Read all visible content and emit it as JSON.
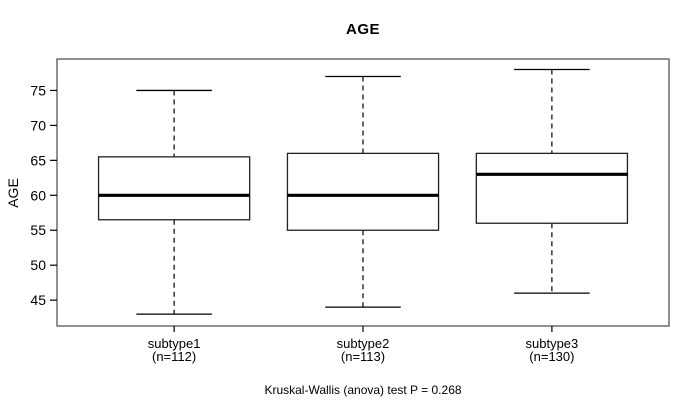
{
  "figure": {
    "title": "AGE",
    "y_axis_label": "AGE",
    "caption": "Kruskal-Wallis (anova) test P = 0.268"
  },
  "colors": {
    "background": "#ffffff",
    "frame": "#555555",
    "box_border": "#222222",
    "box_fill": "#ffffff",
    "median": "#000000",
    "whisker": "#000000",
    "text": "#000000"
  },
  "chart_data": {
    "type": "boxplot",
    "title": "AGE",
    "xlabel": "",
    "ylabel": "AGE",
    "ylim": [
      41.3,
      79.5
    ],
    "y_ticks": [
      45,
      50,
      55,
      60,
      65,
      70,
      75
    ],
    "grid": false,
    "legend": "none",
    "categories": [
      "subtype1",
      "subtype2",
      "subtype3"
    ],
    "category_counts": [
      "(n=112)",
      "(n=113)",
      "(n=130)"
    ],
    "series": [
      {
        "name": "subtype1",
        "n": 112,
        "whisker_low": 43,
        "q1": 56.5,
        "median": 60,
        "q3": 65.5,
        "whisker_high": 75
      },
      {
        "name": "subtype2",
        "n": 113,
        "whisker_low": 44,
        "q1": 55,
        "median": 60,
        "q3": 66,
        "whisker_high": 77
      },
      {
        "name": "subtype3",
        "n": 130,
        "whisker_low": 46,
        "q1": 56,
        "median": 63,
        "q3": 66,
        "whisker_high": 78
      }
    ],
    "annotation": "Kruskal-Wallis (anova) test P = 0.268"
  }
}
